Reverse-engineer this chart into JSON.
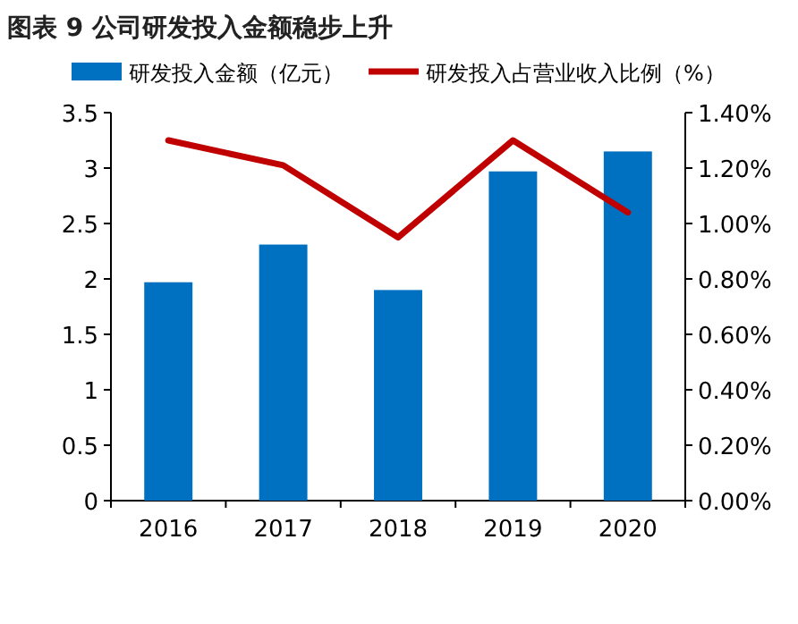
{
  "chart_data": {
    "type": "bar",
    "title": "图表 9 公司研发投入金额稳步上升",
    "categories": [
      "2016",
      "2017",
      "2018",
      "2019",
      "2020"
    ],
    "series": [
      {
        "name": "研发投入金额（亿元）",
        "color": "#0070c0",
        "values": [
          1.97,
          2.31,
          1.9,
          2.97,
          3.15
        ]
      },
      {
        "name": "研发投入占营业收入比例（%）",
        "type": "line",
        "axis": "y2",
        "color": "#c00000",
        "values": [
          1.3,
          1.21,
          0.95,
          1.3,
          1.04
        ]
      }
    ],
    "ylim": [
      0,
      3.5
    ],
    "yticks": [
      0,
      {
        "value": 0.5,
        "label": "0.5"
      },
      1,
      {
        "value": 1.5,
        "label": "1.5"
      },
      2,
      {
        "value": 2.5,
        "label": "2.5"
      },
      3,
      {
        "value": 3.5,
        "label": "3.5"
      }
    ],
    "y2lim": [
      0,
      1.4
    ],
    "y2ticks": [
      {
        "value": 0,
        "label": "0.00%"
      },
      {
        "value": 0.2,
        "label": "0.20%"
      },
      {
        "value": 0.4,
        "label": "0.40%"
      },
      {
        "value": 0.6,
        "label": "0.60%"
      },
      {
        "value": 0.8,
        "label": "0.80%"
      },
      {
        "value": 1.0,
        "label": "1.00%"
      },
      {
        "value": 1.2,
        "label": "1.20%"
      },
      {
        "value": 1.4,
        "label": "1.40%"
      }
    ],
    "legend": "top",
    "grid": false
  }
}
